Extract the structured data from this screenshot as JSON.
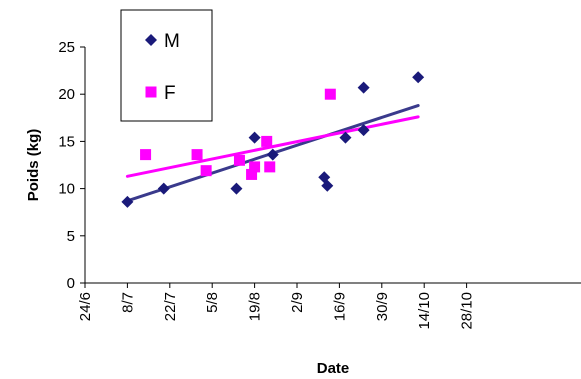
{
  "chart_data": {
    "type": "scatter",
    "xlabel": "Date",
    "ylabel": "Poids (kg)",
    "x_ticks": [
      "24/6",
      "8/7",
      "22/7",
      "5/8",
      "19/8",
      "2/9",
      "16/9",
      "30/9",
      "14/10",
      "28/10"
    ],
    "ylim": [
      0,
      25
    ],
    "y_ticks": [
      0,
      5,
      10,
      15,
      20,
      25
    ],
    "grid": false,
    "legend_position": "top-left",
    "series": [
      {
        "name": "M",
        "marker": "diamond",
        "color": "#1a1a7a",
        "trend_color": "#3a3a8c",
        "points": [
          {
            "x": "8/7",
            "y": 8.6
          },
          {
            "x": "20/7",
            "y": 10.0
          },
          {
            "x": "13/8",
            "y": 10.0
          },
          {
            "x": "19/8",
            "y": 15.4
          },
          {
            "x": "25/8",
            "y": 13.6
          },
          {
            "x": "11/9",
            "y": 11.2
          },
          {
            "x": "12/9",
            "y": 10.3
          },
          {
            "x": "18/9",
            "y": 15.4
          },
          {
            "x": "24/9",
            "y": 20.7
          },
          {
            "x": "24/9",
            "y": 16.2
          },
          {
            "x": "12/10",
            "y": 21.8
          }
        ],
        "trend": [
          {
            "x": "8/7",
            "y": 8.7
          },
          {
            "x": "12/10",
            "y": 18.8
          }
        ]
      },
      {
        "name": "F",
        "marker": "square",
        "color": "#ff00ff",
        "trend_color": "#ff00ff",
        "points": [
          {
            "x": "14/7",
            "y": 13.6
          },
          {
            "x": "31/7",
            "y": 13.6
          },
          {
            "x": "3/8",
            "y": 11.9
          },
          {
            "x": "14/8",
            "y": 13.0
          },
          {
            "x": "18/8",
            "y": 11.5
          },
          {
            "x": "19/8",
            "y": 12.3
          },
          {
            "x": "23/8",
            "y": 15.0
          },
          {
            "x": "24/8",
            "y": 12.3
          },
          {
            "x": "13/9",
            "y": 20.0
          }
        ],
        "trend": [
          {
            "x": "8/7",
            "y": 11.3
          },
          {
            "x": "12/10",
            "y": 17.6
          }
        ]
      }
    ]
  }
}
